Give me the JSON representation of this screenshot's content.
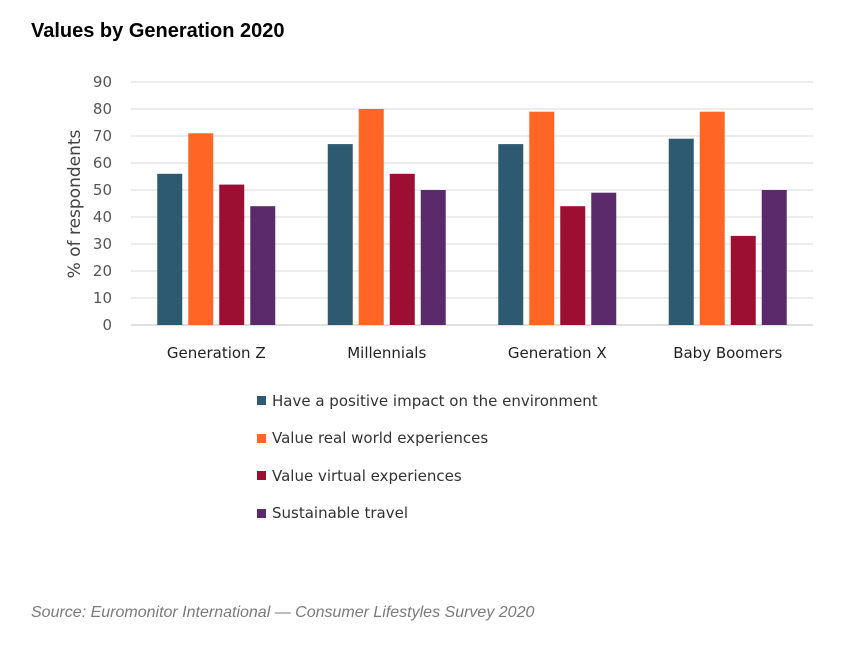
{
  "title": "Values by Generation 2020",
  "source": "Source: Euromonitor International — Consumer Lifestyles Survey 2020",
  "chart_data": {
    "type": "bar",
    "title": "Values by Generation 2020",
    "xlabel": "",
    "ylabel": "% of respondents",
    "ylim": [
      0,
      90
    ],
    "yticks": [
      0,
      10,
      20,
      30,
      40,
      50,
      60,
      70,
      80,
      90
    ],
    "grid": true,
    "legend_position": "bottom",
    "categories": [
      "Generation Z",
      "Millennials",
      "Generation X",
      "Baby Boomers"
    ],
    "series": [
      {
        "name": "Have a positive impact on the environment",
        "color": "#2e5a71",
        "values": [
          56,
          67,
          67,
          69
        ]
      },
      {
        "name": "Value real world experiences",
        "color": "#ff6524",
        "values": [
          71,
          80,
          79,
          79
        ]
      },
      {
        "name": "Value virtual experiences",
        "color": "#9c0f33",
        "values": [
          52,
          56,
          44,
          33
        ]
      },
      {
        "name": "Sustainable travel",
        "color": "#5b2a6b",
        "values": [
          44,
          50,
          49,
          50
        ]
      }
    ]
  }
}
